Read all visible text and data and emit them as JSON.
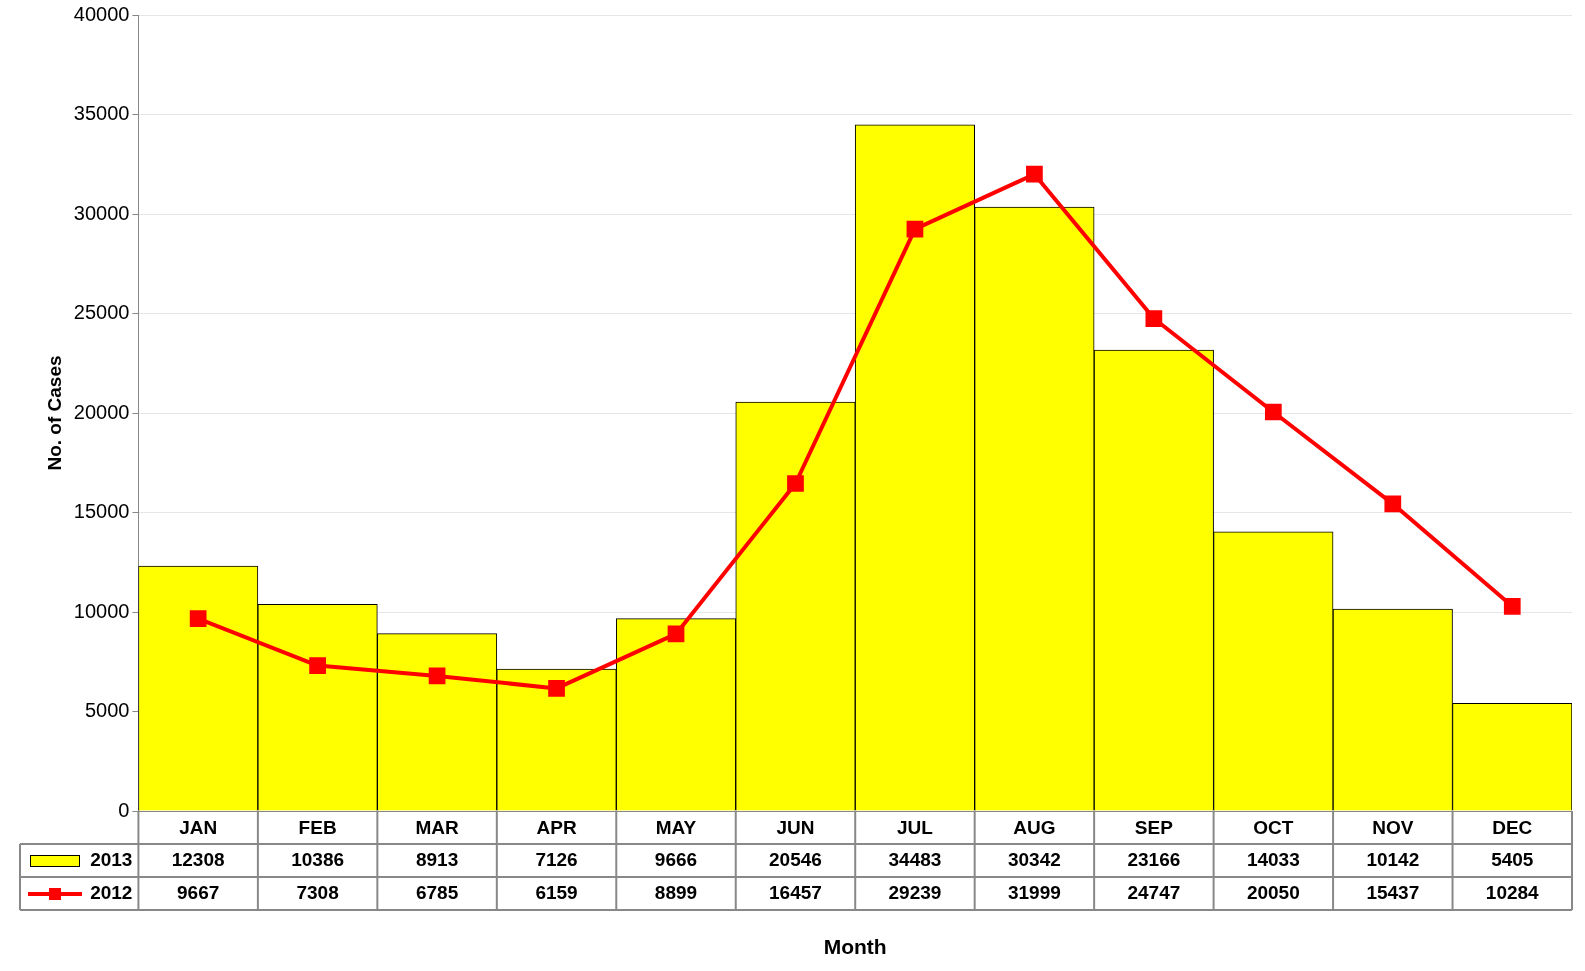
{
  "chart_data": {
    "type": "bar",
    "xlabel": "Month",
    "ylabel": "No. of Cases",
    "categories": [
      "JAN",
      "FEB",
      "MAR",
      "APR",
      "MAY",
      "JUN",
      "JUL",
      "AUG",
      "SEP",
      "OCT",
      "NOV",
      "DEC"
    ],
    "series": [
      {
        "name": "2013",
        "color": "#ffff00",
        "values": [
          12308,
          10386,
          8913,
          7126,
          9666,
          20546,
          34483,
          30342,
          23166,
          14033,
          10142,
          5405
        ]
      },
      {
        "name": "2012",
        "type": "line",
        "color": "#ff0000",
        "marker": "square",
        "values": [
          9667,
          7308,
          6785,
          6159,
          8899,
          16457,
          29239,
          31999,
          24747,
          20050,
          15437,
          10284
        ]
      }
    ],
    "ylim": [
      0,
      40000
    ],
    "yticks": [
      0,
      5000,
      10000,
      15000,
      20000,
      25000,
      30000,
      35000,
      40000
    ],
    "grid": "y",
    "legend": "bottom",
    "data_labels": true
  }
}
